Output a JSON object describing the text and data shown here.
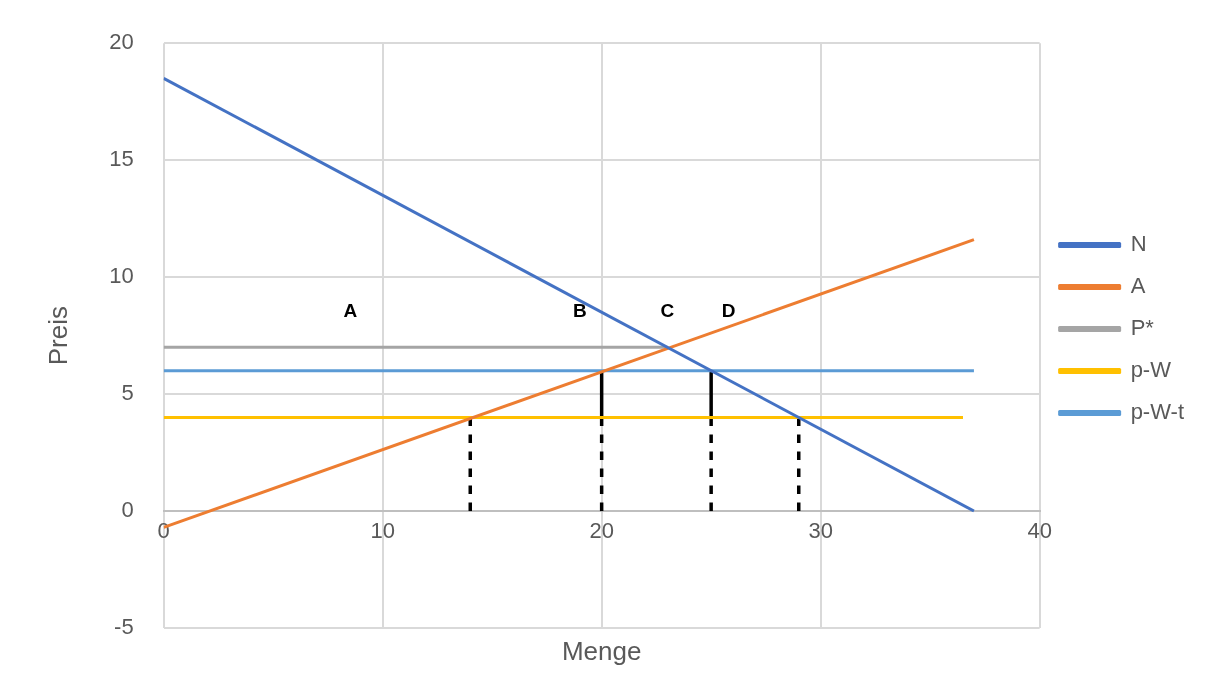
{
  "chart_data": {
    "type": "line",
    "xlabel": "Menge",
    "ylabel": "Preis",
    "xlim": [
      0,
      40
    ],
    "xticks": [
      0,
      10,
      20,
      30,
      40
    ],
    "ylim": [
      -5,
      20
    ],
    "yticks": [
      -5,
      0,
      5,
      10,
      15,
      20
    ],
    "grid": true,
    "legend": "right",
    "marker": "none",
    "line_style": "solid",
    "series": [
      {
        "name": "N",
        "color": "#4472c4",
        "x": [
          0,
          37
        ],
        "values": [
          18.5,
          0
        ]
      },
      {
        "name": "A",
        "color": "#ed7d31",
        "x": [
          0,
          37
        ],
        "values": [
          -0.7,
          11.6
        ]
      },
      {
        "name": "P*",
        "color": "#a5a5a5",
        "x": [
          0,
          23
        ],
        "values": [
          7,
          7
        ]
      },
      {
        "name": "p-W",
        "color": "#ffc000",
        "x": [
          0,
          36.5
        ],
        "values": [
          4,
          4
        ]
      },
      {
        "name": "p-W-t",
        "color": "#5b9bd5",
        "x": [
          0,
          37
        ],
        "values": [
          6,
          6
        ]
      },
      {
        "color": "#000000",
        "line_style": "dashed",
        "x": [
          14,
          14
        ],
        "values": [
          0,
          4
        ]
      },
      {
        "color": "#000000",
        "line_style": "dashed",
        "x": [
          20,
          20
        ],
        "values": [
          0,
          4
        ]
      },
      {
        "color": "#000000",
        "x": [
          20,
          20
        ],
        "values": [
          4,
          6
        ]
      },
      {
        "color": "#000000",
        "line_style": "dashed",
        "x": [
          25,
          25
        ],
        "values": [
          0,
          4
        ]
      },
      {
        "color": "#000000",
        "x": [
          25,
          25
        ],
        "values": [
          4,
          6
        ]
      },
      {
        "color": "#000000",
        "line_style": "dashed",
        "x": [
          29,
          29
        ],
        "values": [
          0,
          4
        ]
      }
    ],
    "annotations": [
      "A",
      "B",
      "C",
      "D"
    ]
  }
}
